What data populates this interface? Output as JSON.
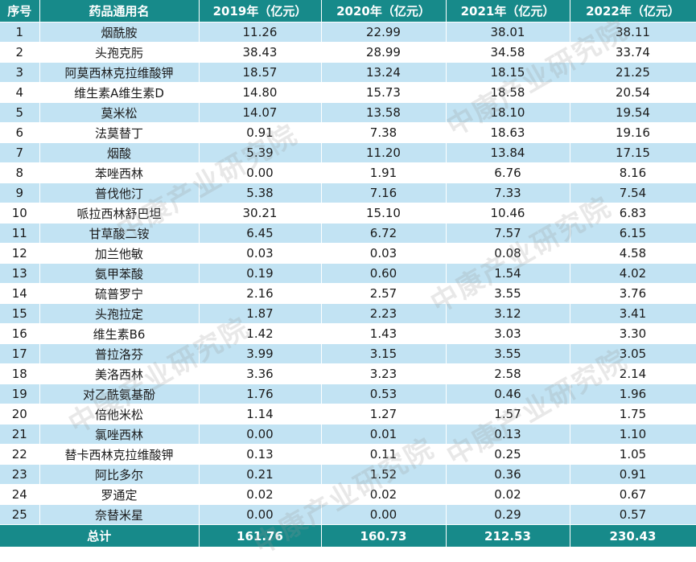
{
  "table": {
    "headers": [
      "序号",
      "药品通用名",
      "2019年（亿元）",
      "2020年（亿元）",
      "2021年（亿元）",
      "2022年（亿元）"
    ],
    "rows": [
      [
        "1",
        "烟酰胺",
        "11.26",
        "22.99",
        "38.01",
        "38.11"
      ],
      [
        "2",
        "头孢克肟",
        "38.43",
        "28.99",
        "34.58",
        "33.74"
      ],
      [
        "3",
        "阿莫西林克拉维酸钾",
        "18.57",
        "13.24",
        "18.15",
        "21.25"
      ],
      [
        "4",
        "维生素A维生素D",
        "14.80",
        "15.73",
        "18.58",
        "20.54"
      ],
      [
        "5",
        "莫米松",
        "14.07",
        "13.58",
        "18.10",
        "19.54"
      ],
      [
        "6",
        "法莫替丁",
        "0.91",
        "7.38",
        "18.63",
        "19.16"
      ],
      [
        "7",
        "烟酸",
        "5.39",
        "11.20",
        "13.84",
        "17.15"
      ],
      [
        "8",
        "苯唑西林",
        "0.00",
        "1.91",
        "6.76",
        "8.16"
      ],
      [
        "9",
        "普伐他汀",
        "5.38",
        "7.16",
        "7.33",
        "7.54"
      ],
      [
        "10",
        "哌拉西林舒巴坦",
        "30.21",
        "15.10",
        "10.46",
        "6.83"
      ],
      [
        "11",
        "甘草酸二铵",
        "6.45",
        "6.72",
        "7.57",
        "6.15"
      ],
      [
        "12",
        "加兰他敏",
        "0.03",
        "0.03",
        "0.08",
        "4.58"
      ],
      [
        "13",
        "氨甲苯酸",
        "0.19",
        "0.60",
        "1.54",
        "4.02"
      ],
      [
        "14",
        "硫普罗宁",
        "2.16",
        "2.57",
        "3.55",
        "3.76"
      ],
      [
        "15",
        "头孢拉定",
        "1.87",
        "2.23",
        "3.12",
        "3.41"
      ],
      [
        "16",
        "维生素B6",
        "1.42",
        "1.43",
        "3.03",
        "3.30"
      ],
      [
        "17",
        "普拉洛芬",
        "3.99",
        "3.15",
        "3.55",
        "3.05"
      ],
      [
        "18",
        "美洛西林",
        "3.36",
        "3.23",
        "2.58",
        "2.14"
      ],
      [
        "19",
        "对乙酰氨基酚",
        "1.76",
        "0.53",
        "0.46",
        "1.96"
      ],
      [
        "20",
        "倍他米松",
        "1.14",
        "1.27",
        "1.57",
        "1.75"
      ],
      [
        "21",
        "氯唑西林",
        "0.00",
        "0.01",
        "0.13",
        "1.10"
      ],
      [
        "22",
        "替卡西林克拉维酸钾",
        "0.13",
        "0.11",
        "0.25",
        "1.05"
      ],
      [
        "23",
        "阿比多尔",
        "0.21",
        "1.52",
        "0.36",
        "0.91"
      ],
      [
        "24",
        "罗通定",
        "0.02",
        "0.02",
        "0.02",
        "0.67"
      ],
      [
        "25",
        "奈替米星",
        "0.00",
        "0.00",
        "0.29",
        "0.57"
      ]
    ],
    "total": [
      "总计",
      "161.76",
      "160.73",
      "212.53",
      "230.43"
    ]
  },
  "watermark": {
    "text": "中康产业研究院"
  },
  "colors": {
    "header_bg": "#178a8a",
    "odd_row_bg": "#c2e3f3",
    "even_row_bg": "#ffffff",
    "header_text": "#ffffff"
  }
}
